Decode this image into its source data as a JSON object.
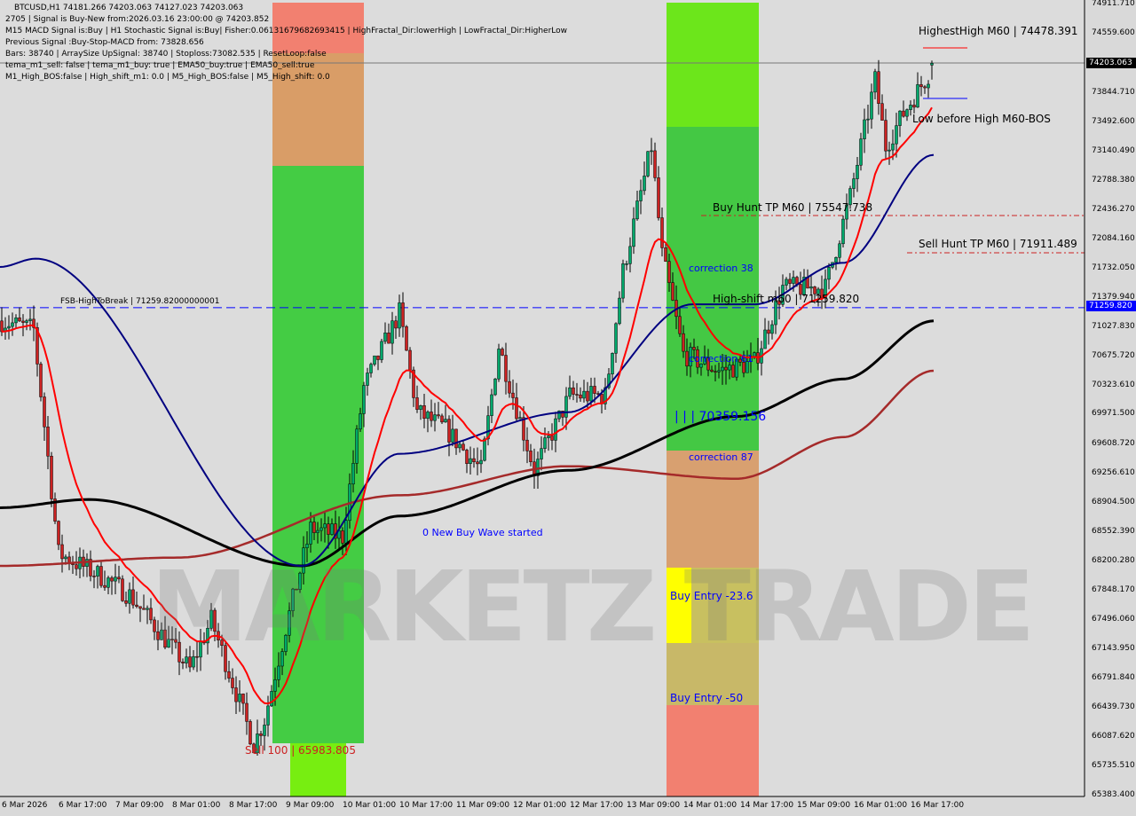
{
  "header": {
    "symbol_line": "BTCUSD,H1  74181.266 74203.063 74127.023 74203.063",
    "lines": [
      "2705 | Signal is Buy-New from:2026.03.16 23:00:00 @ 74203.852",
      "M15 MACD Signal is:Buy | H1 Stochastic Signal is:Buy| Fisher:0.06131679682693415 | HighFractal_Dir:lowerHigh | LowFractal_Dir:HigherLow",
      "Previous Signal :Buy-Stop-MACD from: 73828.656",
      "Bars: 38740 | ArraySize UpSignal: 38740 | Stoploss:73082.535 | ResetLoop:false",
      "tema_m1_sell: false | tema_m1_buy: true | EMA50_buy:true | EMA50_sell:true",
      "M1_High_BOS:false | High_shift_m1: 0.0 | M5_High_BOS:false | M5_High_shift: 0.0"
    ]
  },
  "annotations": {
    "highest_high": "HighestHigh   M60 | 74478.391",
    "low_before_high": "Low before High   M60-BOS",
    "buy_hunt": "Buy Hunt TP M60 | 75547.738",
    "sell_hunt": "Sell Hunt TP M60 | 71911.489",
    "correction38": "correction 38",
    "high_shift": "High-shift m60 | 71259.820",
    "correction61": "correction 61",
    "level_70359": "| | | 70359.156",
    "correction87": "correction 87",
    "buy_entry_23": "Buy Entry -23.6",
    "buy_entry_50": "Buy Entry -50",
    "new_buy_wave": "0 New Buy Wave started",
    "fsb": "FSB-HighToBreak | 71259.82000000001",
    "sell100": "Sell 100 | 65983.805",
    "watermark": "MARKETZ TRADE"
  },
  "price_axis": {
    "ticks": [
      "74911.710",
      "74559.600",
      "73844.710",
      "73492.600",
      "73140.490",
      "72788.380",
      "72436.270",
      "72084.160",
      "71732.050",
      "71379.940",
      "71027.830",
      "70675.720",
      "70323.610",
      "69971.500",
      "69608.720",
      "69256.610",
      "68904.500",
      "68552.390",
      "68200.280",
      "67848.170",
      "67496.060",
      "67143.950",
      "66791.840",
      "66439.730",
      "66087.620",
      "65735.510",
      "65383.400"
    ],
    "current_price": "74203.063",
    "fsb_price": "71259.820"
  },
  "time_axis": {
    "ticks": [
      "6 Mar 2026",
      "6 Mar 17:00",
      "7 Mar 09:00",
      "8 Mar 01:00",
      "8 Mar 17:00",
      "9 Mar 09:00",
      "10 Mar 01:00",
      "10 Mar 17:00",
      "11 Mar 09:00",
      "12 Mar 01:00",
      "12 Mar 17:00",
      "13 Mar 09:00",
      "14 Mar 01:00",
      "14 Mar 17:00",
      "15 Mar 09:00",
      "16 Mar 01:00",
      "16 Mar 17:00"
    ]
  },
  "colors": {
    "bull": "#00a86b",
    "bear": "#cc2222",
    "ema_fast": "#ff0000",
    "ema_mid": "#000080",
    "ema_slow": "#000000",
    "ema_long": "#a52a2a",
    "fsb_line": "#0000ff",
    "current_tag": "#000000",
    "fsb_tag": "#0000ff"
  },
  "chart_data": {
    "type": "candlestick",
    "symbol": "BTCUSD",
    "timeframe": "H1",
    "ylim": [
      65383.4,
      74911.71
    ],
    "last": {
      "open": 74181.266,
      "high": 74203.063,
      "low": 74127.023,
      "close": 74203.063
    },
    "approx_close_path": [
      [
        "6 Mar 00:00",
        71100
      ],
      [
        "6 Mar 09:00",
        71000
      ],
      [
        "6 Mar 16:00",
        68300
      ],
      [
        "7 Mar 05:00",
        68000
      ],
      [
        "7 Mar 12:00",
        67800
      ],
      [
        "8 Mar 05:00",
        66900
      ],
      [
        "8 Mar 11:00",
        67500
      ],
      [
        "8 Mar 23:00",
        66000
      ],
      [
        "9 Mar 02:00",
        66300
      ],
      [
        "9 Mar 08:00",
        67400
      ],
      [
        "9 Mar 15:00",
        68600
      ],
      [
        "10 Mar 00:00",
        68500
      ],
      [
        "10 Mar 06:00",
        70300
      ],
      [
        "10 Mar 16:00",
        71200
      ],
      [
        "10 Mar 21:00",
        70000
      ],
      [
        "11 Mar 05:00",
        69800
      ],
      [
        "11 Mar 15:00",
        69300
      ],
      [
        "11 Mar 20:00",
        70800
      ],
      [
        "12 Mar 06:00",
        69300
      ],
      [
        "12 Mar 16:00",
        70200
      ],
      [
        "13 Mar 02:00",
        70200
      ],
      [
        "13 Mar 07:00",
        71700
      ],
      [
        "13 Mar 15:00",
        73200
      ],
      [
        "13 Mar 18:00",
        71900
      ],
      [
        "14 Mar 00:00",
        70700
      ],
      [
        "14 Mar 10:00",
        70500
      ],
      [
        "14 Mar 20:00",
        70600
      ],
      [
        "15 Mar 04:00",
        71500
      ],
      [
        "15 Mar 16:00",
        71500
      ],
      [
        "15 Mar 23:00",
        72600
      ],
      [
        "16 Mar 06:00",
        74000
      ],
      [
        "16 Mar 09:00",
        73200
      ],
      [
        "16 Mar 14:00",
        73600
      ],
      [
        "16 Mar 23:00",
        74203.063
      ]
    ],
    "horizontal_levels": [
      {
        "label": "FSB-HighToBreak",
        "value": 71259.82
      },
      {
        "label": "HighestHigh M60",
        "value": 74478.391
      },
      {
        "label": "Buy Hunt TP M60",
        "value": 75547.738
      },
      {
        "label": "Sell Hunt TP M60",
        "value": 71911.489
      }
    ]
  }
}
